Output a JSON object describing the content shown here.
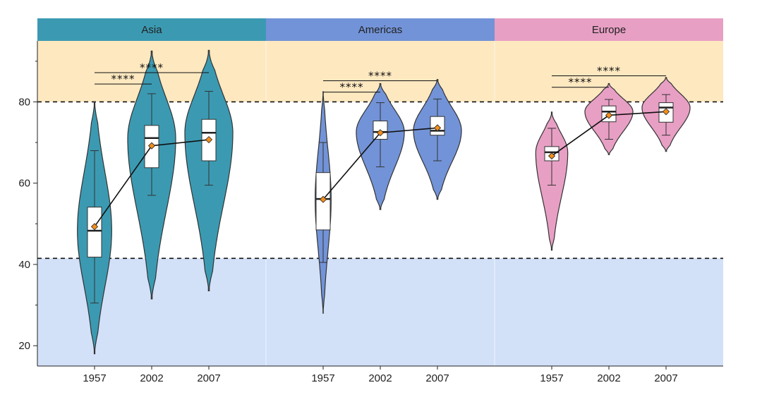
{
  "chart_data": {
    "type": "violin",
    "y_range": [
      15,
      95
    ],
    "y_ticks": [
      20,
      40,
      60,
      80
    ],
    "x_categories": [
      "1957",
      "2002",
      "2007"
    ],
    "reference_lines": [
      80,
      41.5
    ],
    "bands": {
      "upper": {
        "from": 80,
        "to": 95,
        "color": "#fde8c0"
      },
      "lower": {
        "from": 15,
        "to": 41.5,
        "color": "#d2e0f8"
      }
    },
    "panels": [
      {
        "name": "Asia",
        "color": "#3b9ab2",
        "groups": [
          {
            "year": "1957",
            "violin_min": 18,
            "violin_max": 80,
            "whisker_low": 30.5,
            "q1": 41.8,
            "median": 48.3,
            "q3": 54.1,
            "whisker_high": 68,
            "mean": 49.3,
            "max_width": 0.3
          },
          {
            "year": "2002",
            "violin_min": 31.5,
            "violin_max": 92.5,
            "whisker_low": 57,
            "q1": 63.8,
            "median": 71.1,
            "q3": 74.2,
            "whisker_high": 82,
            "mean": 69.2,
            "max_width": 0.42
          },
          {
            "year": "2007",
            "violin_min": 33.5,
            "violin_max": 92.7,
            "whisker_low": 59.5,
            "q1": 65.5,
            "median": 72.4,
            "q3": 75.7,
            "whisker_high": 82.6,
            "mean": 70.7,
            "max_width": 0.42
          }
        ],
        "comparisons": [
          {
            "from": "1957",
            "to": "2002",
            "y": 84.4,
            "label": "****"
          },
          {
            "from": "1957",
            "to": "2007",
            "y": 87.2,
            "label": "****"
          }
        ]
      },
      {
        "name": "Americas",
        "color": "#7293d7",
        "groups": [
          {
            "year": "1957",
            "violin_min": 28,
            "violin_max": 82.5,
            "whisker_low": 40.5,
            "q1": 48.5,
            "median": 56.1,
            "q3": 62.6,
            "whisker_high": 70,
            "mean": 56.0,
            "max_width": 0.14
          },
          {
            "year": "2002",
            "violin_min": 53.5,
            "violin_max": 84.5,
            "whisker_low": 64,
            "q1": 70.8,
            "median": 72.6,
            "q3": 75.3,
            "whisker_high": 79.8,
            "mean": 72.4,
            "max_width": 0.42
          },
          {
            "year": "2007",
            "violin_min": 56,
            "violin_max": 85.5,
            "whisker_low": 65.5,
            "q1": 71.8,
            "median": 72.9,
            "q3": 76.4,
            "whisker_high": 80.7,
            "mean": 73.6,
            "max_width": 0.42
          }
        ],
        "comparisons": [
          {
            "from": "1957",
            "to": "2002",
            "y": 82.4,
            "label": "****"
          },
          {
            "from": "1957",
            "to": "2007",
            "y": 85.2,
            "label": "****"
          }
        ]
      },
      {
        "name": "Europe",
        "color": "#e89fc4",
        "groups": [
          {
            "year": "1957",
            "violin_min": 43.5,
            "violin_max": 77.5,
            "whisker_low": 59.5,
            "q1": 65.5,
            "median": 67.6,
            "q3": 69.0,
            "whisker_high": 73.5,
            "mean": 66.7,
            "max_width": 0.28
          },
          {
            "year": "2002",
            "violin_min": 67,
            "violin_max": 84.5,
            "whisker_low": 70.8,
            "q1": 75.1,
            "median": 77.6,
            "q3": 79.0,
            "whisker_high": 80.6,
            "mean": 76.7,
            "max_width": 0.42
          },
          {
            "year": "2007",
            "violin_min": 67.8,
            "violin_max": 86,
            "whisker_low": 71.8,
            "q1": 75.0,
            "median": 78.6,
            "q3": 79.8,
            "whisker_high": 81.8,
            "mean": 77.6,
            "max_width": 0.42
          }
        ],
        "comparisons": [
          {
            "from": "1957",
            "to": "2002",
            "y": 83.6,
            "label": "****"
          },
          {
            "from": "1957",
            "to": "2007",
            "y": 86.4,
            "label": "****"
          }
        ]
      }
    ]
  }
}
